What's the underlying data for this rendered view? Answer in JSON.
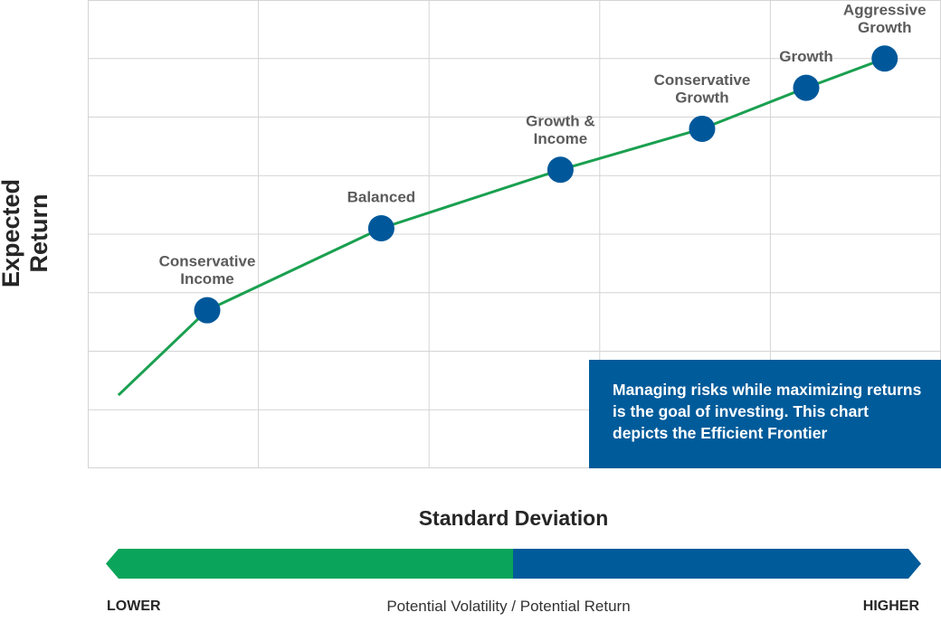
{
  "chart_data": {
    "type": "line",
    "title": "",
    "xlabel": "Standard Deviation",
    "ylabel": "Expected Return",
    "grid": true,
    "line_color": "#1aa050",
    "marker_color": "#00589a",
    "series": [
      {
        "points": [
          {
            "x": 0.18,
            "y": 1.25,
            "label": ""
          },
          {
            "x": 0.7,
            "y": 2.7,
            "label": "Conservative Income"
          },
          {
            "x": 1.72,
            "y": 4.1,
            "label": "Balanced"
          },
          {
            "x": 2.77,
            "y": 5.1,
            "label": "Growth & Income"
          },
          {
            "x": 3.6,
            "y": 5.8,
            "label": "Conservative Growth"
          },
          {
            "x": 4.21,
            "y": 6.5,
            "label": "Growth"
          },
          {
            "x": 4.67,
            "y": 7.0,
            "label": "Aggressive Growth"
          }
        ]
      }
    ],
    "xlim": [
      0,
      5
    ],
    "ylim": [
      0,
      8
    ],
    "x_gridlines": 5,
    "y_gridlines": 8
  },
  "callout": {
    "text": "Managing risks while maximizing returns is the goal of investing. This chart depicts the Efficient Frontier",
    "color": "#005b9a"
  },
  "scale": {
    "lower": "LOWER",
    "middle": "Potential Volatility / Potential Return",
    "higher": "HIGHER",
    "lower_color": "#0aa55a",
    "higher_color": "#005b9a"
  }
}
